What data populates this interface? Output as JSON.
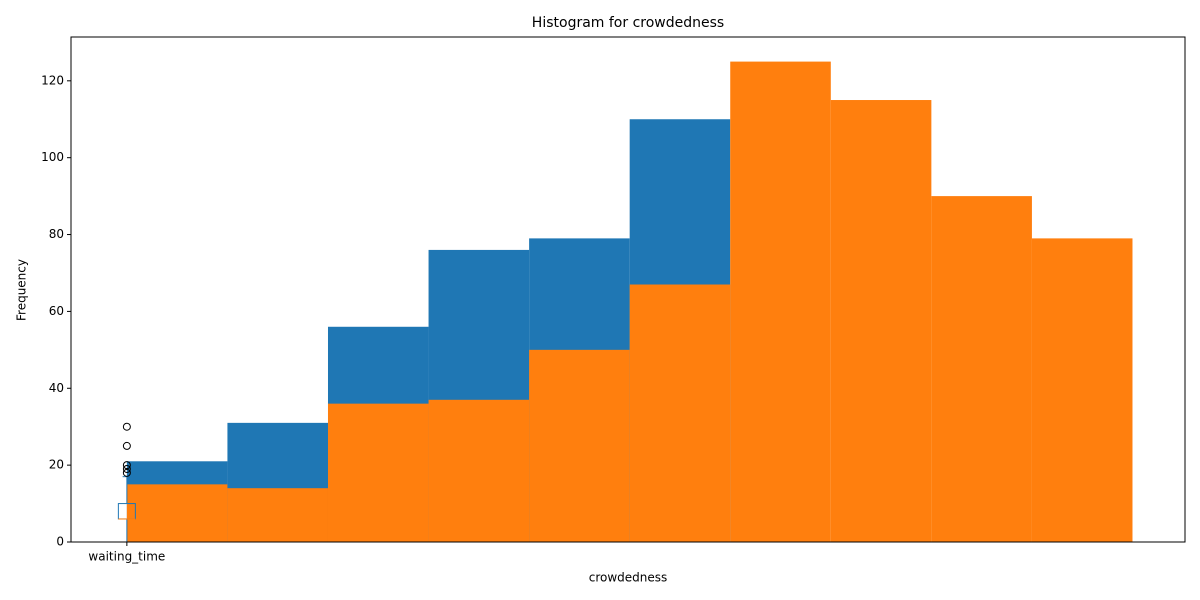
{
  "chart_data": {
    "type": "histogram",
    "title": "Histogram for crowdedness",
    "x_label": "crowdedness",
    "y_label": "Frequency",
    "bins": [
      1.0,
      1.9,
      2.8,
      3.7,
      4.6,
      5.5,
      6.4,
      7.3,
      8.2,
      9.1,
      10.0
    ],
    "series": [
      {
        "color": "#1f77b4",
        "values": [
          21,
          31,
          56,
          76,
          79,
          110,
          null,
          null,
          null,
          null
        ]
      },
      {
        "color": "#ff7f0e",
        "values": [
          15,
          14,
          36,
          37,
          50,
          67,
          125,
          115,
          90,
          79
        ]
      }
    ],
    "boxplot": {
      "x": 1,
      "whislo": 0,
      "q1": 6,
      "median": 6,
      "q3": 10,
      "whishi": 17,
      "fliers": [
        18,
        19,
        20,
        25,
        30
      ],
      "color": "#1f77b4",
      "median_color": "#ff7f0e"
    },
    "xlim": [
      0.5,
      10.47
    ],
    "xticks": [
      {
        "value": 1,
        "label": "waiting_time"
      }
    ],
    "ylim": [
      0,
      131.4
    ],
    "yticks": [
      0,
      20,
      40,
      60,
      80,
      100,
      120
    ]
  }
}
